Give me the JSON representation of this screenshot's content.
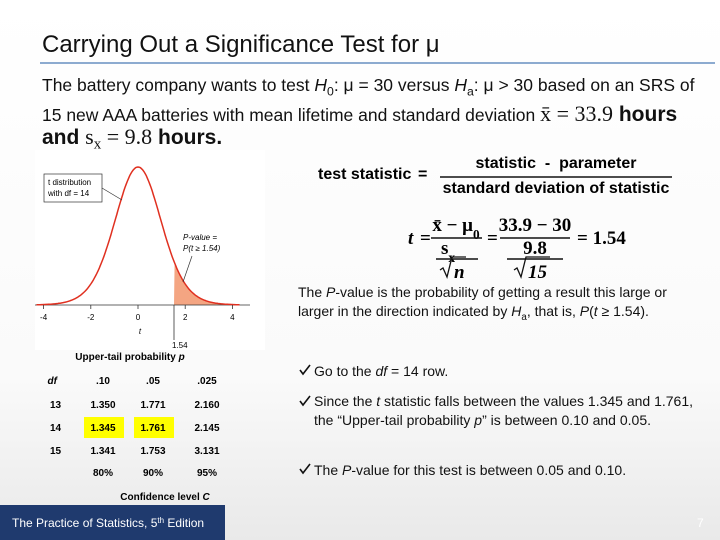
{
  "title": "Carrying Out a Significance Test for μ",
  "intro": {
    "runs": [
      "The battery company wants to test ",
      "H",
      "0",
      ": μ = 30 versus ",
      "H",
      "a",
      ": μ > 30 based on an SRS of 15 new AAA batteries with mean lifetime and standard deviation ",
      "x̄ = 33.9",
      " hours and ",
      "s",
      "x",
      " = 9.8",
      " hours."
    ]
  },
  "figure": {
    "dist_label": [
      "t distribution",
      "with df = 14"
    ],
    "pvalue_label": [
      "P-value =",
      "P(t ≥ 1.54)"
    ],
    "ticks": [
      -4,
      -2,
      0,
      2,
      4
    ],
    "axis_label": "t",
    "marker": "1.54"
  },
  "formula1": {
    "lhs": "test statistic",
    "eq": "=",
    "num": "statistic  -  parameter",
    "den": "standard deviation of statistic"
  },
  "formula2": {
    "lhs": "t",
    "eq1": "=",
    "num1": [
      "x̄ − μ",
      "0"
    ],
    "den1": [
      "s",
      "x"
    ],
    "den1_rad": "n",
    "eq2": "=",
    "num2": "33.9 − 30",
    "den2": "9.8",
    "den2_rad": "15",
    "result": "= 1.54"
  },
  "pvalue_note": {
    "runs": [
      "The ",
      "P",
      "-value is the probability of getting a result this large or larger in the direction indicated by ",
      "H",
      "a",
      ", that is, ",
      "P",
      "(",
      "t",
      " ≥ 1.54)."
    ]
  },
  "table": {
    "caption": [
      "Upper-tail probability ",
      "p"
    ],
    "header": [
      "df",
      ".10",
      ".05",
      ".025"
    ],
    "rows": [
      [
        "13",
        "1.350",
        "1.771",
        "2.160"
      ],
      [
        "14",
        "1.345",
        "1.761",
        "2.145"
      ],
      [
        "15",
        "1.341",
        "1.753",
        "3.131"
      ]
    ],
    "footer": [
      "80%",
      "90%",
      "95%"
    ],
    "confidence": [
      "Confidence level ",
      "C"
    ]
  },
  "bullets": [
    {
      "runs": [
        "Go to the ",
        "df",
        " = 14 row."
      ]
    },
    {
      "runs": [
        "Since the ",
        "t",
        " statistic falls between the values 1.345 and 1.761, the “Upper-tail probability ",
        "p",
        "” is between 0.10 and 0.05."
      ]
    },
    {
      "runs": [
        "The ",
        "P",
        "-value for this test is between 0.05 and 0.10."
      ]
    }
  ],
  "footer": {
    "book": [
      "The Practice of Statistics, 5",
      "th",
      " Edition"
    ],
    "page": "7"
  }
}
